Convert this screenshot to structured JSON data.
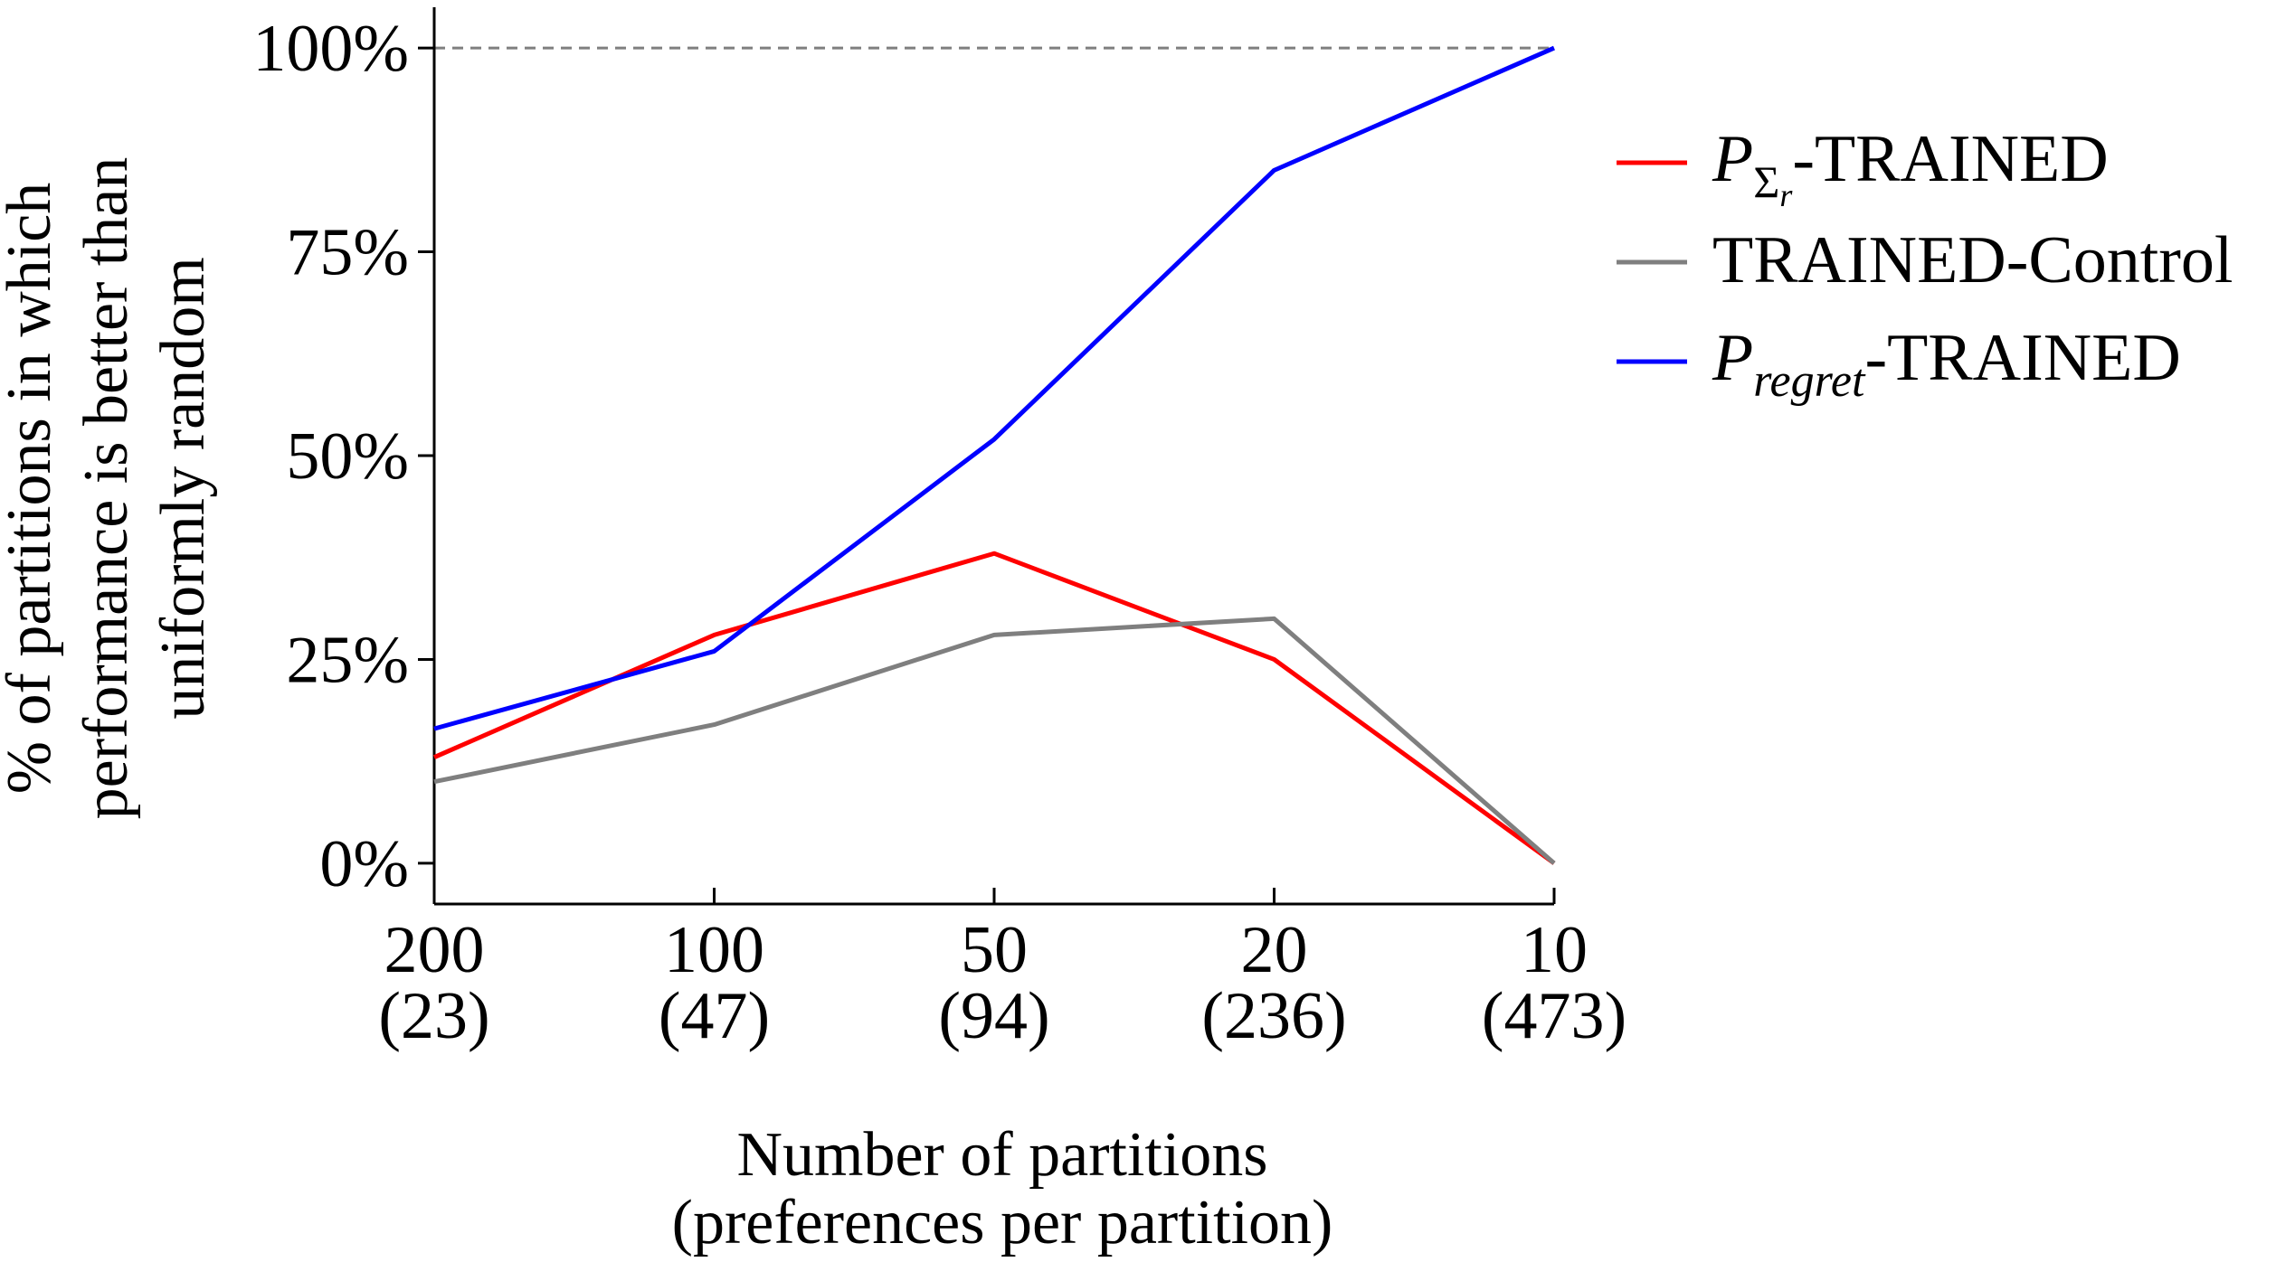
{
  "chart_data": {
    "type": "line",
    "title": "",
    "xlabel": [
      "Number of partitions",
      "(preferences per partition)"
    ],
    "ylabel": [
      "% of partitions in which",
      "performance is better than",
      "uniformly random"
    ],
    "categories": [
      {
        "main": "200",
        "sub": "(23)"
      },
      {
        "main": "100",
        "sub": "(47)"
      },
      {
        "main": "50",
        "sub": "(94)"
      },
      {
        "main": "20",
        "sub": "(236)"
      },
      {
        "main": "10",
        "sub": "(473)"
      }
    ],
    "yticks": [
      {
        "value": 0,
        "label": "0%"
      },
      {
        "value": 25,
        "label": "25%"
      },
      {
        "value": 50,
        "label": "50%"
      },
      {
        "value": 75,
        "label": "75%"
      },
      {
        "value": 100,
        "label": "100%"
      }
    ],
    "ylim": [
      -5,
      105
    ],
    "reference_line": {
      "value": 100,
      "style": "dashed",
      "color": "#7f7f7f"
    },
    "grid": false,
    "legend_position": "right",
    "series": [
      {
        "name": "P_{Σr}-TRAINED",
        "label_main": "P",
        "label_sub": "Σ",
        "label_subsub": "r",
        "label_suffix": "-TRAINED",
        "color": "#ff0000",
        "values": [
          13,
          28,
          38,
          25,
          0
        ]
      },
      {
        "name": "TRAINED-Control",
        "label_main": "TRAINED-Control",
        "color": "#7f7f7f",
        "values": [
          10,
          17,
          28,
          30,
          0
        ]
      },
      {
        "name": "P_{regret}-TRAINED",
        "label_main": "P",
        "label_sub": "regret",
        "label_suffix": "-TRAINED",
        "color": "#0000ff",
        "values": [
          16.5,
          26,
          52,
          85,
          100
        ]
      }
    ]
  }
}
